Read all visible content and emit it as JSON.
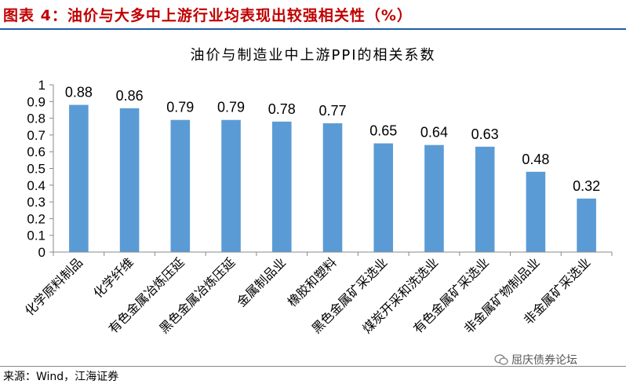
{
  "figure_title": "图表 4：油价与大多中上游行业均表现出较强相关性（%）",
  "chart_title": "油价与制造业中上游PPI的相关系数",
  "source": "来源：Wind，江海证券",
  "watermark": "屈庆债券论坛",
  "colors": {
    "bar": "#5b9bd5",
    "title": "#c00000",
    "rule": "#1f5fa8"
  },
  "chart_data": {
    "type": "bar",
    "title": "油价与制造业中上游PPI的相关系数",
    "categories": [
      "化学原料制品",
      "化学纤维",
      "有色金属冶炼压延",
      "黑色金属冶炼压延",
      "金属制品业",
      "橡胶和塑料",
      "黑色金属矿采选业",
      "煤炭开采和洗选业",
      "有色金属矿采选业",
      "非金属矿物制品业",
      "非金属矿采选业"
    ],
    "values": [
      0.88,
      0.86,
      0.79,
      0.79,
      0.78,
      0.77,
      0.65,
      0.64,
      0.63,
      0.48,
      0.32
    ],
    "labels": [
      "0.88",
      "0.86",
      "0.79",
      "0.79",
      "0.78",
      "0.77",
      "0.65",
      "0.64",
      "0.63",
      "0.48",
      "0.32"
    ],
    "yticks": [
      "0",
      "0.1",
      "0.2",
      "0.3",
      "0.4",
      "0.5",
      "0.6",
      "0.7",
      "0.8",
      "0.9",
      "1"
    ],
    "ylim": [
      0,
      1
    ],
    "grid": false,
    "legend": "none"
  }
}
